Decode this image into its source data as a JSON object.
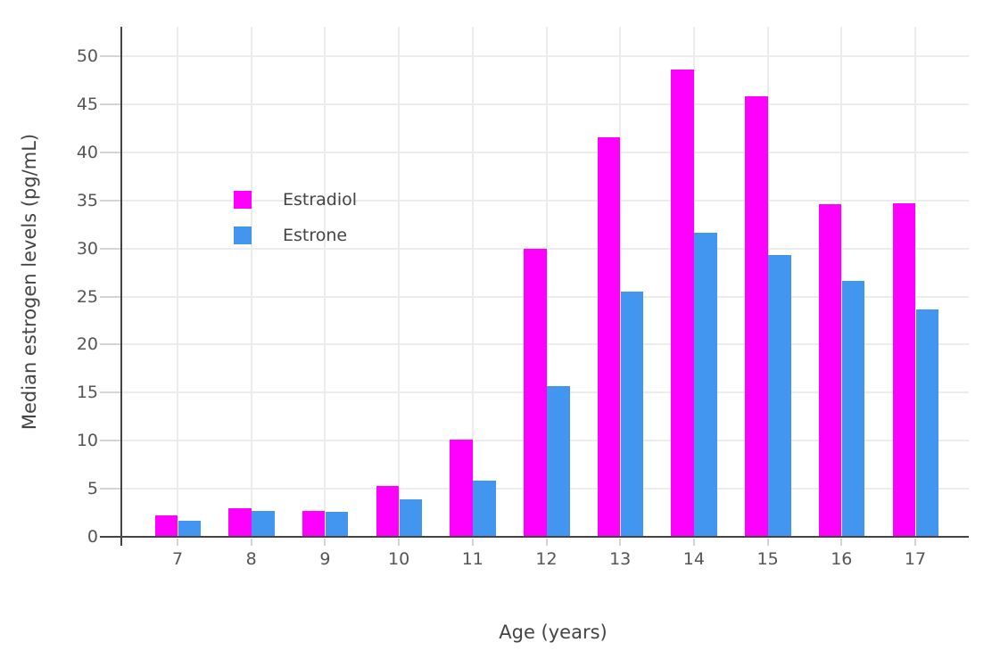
{
  "chart_data": {
    "type": "bar",
    "title": "",
    "xlabel": "Age (years)",
    "ylabel": "Median estrogen levels (pg/mL)",
    "categories": [
      "7",
      "8",
      "9",
      "10",
      "11",
      "12",
      "13",
      "14",
      "15",
      "16",
      "17"
    ],
    "series": [
      {
        "name": "Estradiol",
        "color": "#ff00ff",
        "values": [
          2.2,
          3.0,
          2.7,
          5.3,
          10.1,
          30.0,
          41.6,
          48.6,
          45.8,
          34.6,
          34.7
        ]
      },
      {
        "name": "Estrone",
        "color": "#4296f0",
        "values": [
          1.7,
          2.7,
          2.6,
          3.9,
          5.8,
          15.7,
          25.5,
          31.6,
          29.3,
          26.6,
          23.7
        ]
      }
    ],
    "ylim": [
      0,
      50
    ],
    "yticks": [
      0,
      5,
      10,
      15,
      20,
      25,
      30,
      35,
      40,
      45,
      50
    ],
    "grid": true,
    "legend_position": "inside-top-left",
    "legend_entries": [
      "Estradiol",
      "Estrone"
    ]
  },
  "colors": {
    "background": "#ffffff",
    "axis_line": "#444444",
    "grid": "#ececec",
    "tick_mark": "#d4d4d4",
    "tick_label": "#555555",
    "title_text": "#444444",
    "estradiol": "#ff00ff",
    "estrone": "#4296f0"
  }
}
